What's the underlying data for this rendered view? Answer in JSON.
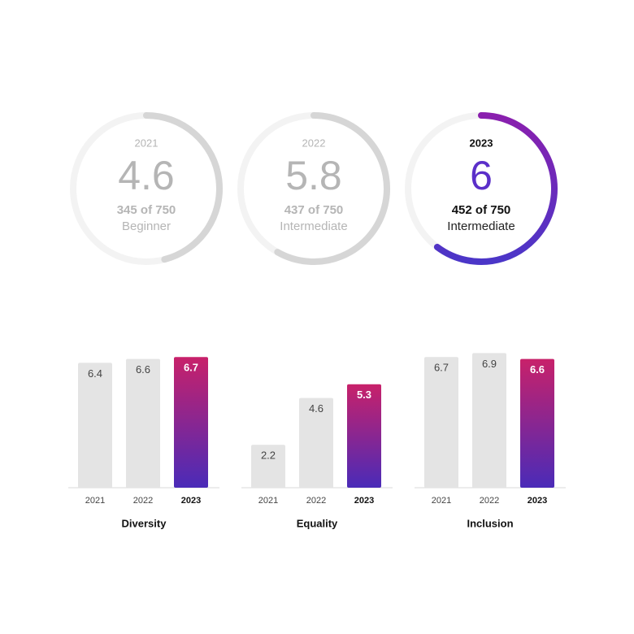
{
  "chart_data": [
    {
      "type": "gauge",
      "title": "2021",
      "score": 4.6,
      "value": 345,
      "max": 750,
      "value_labels": "345 of 750",
      "level": "Beginner",
      "color": "#d6d6d6",
      "active": false
    },
    {
      "type": "gauge",
      "title": "2022",
      "score": 5.8,
      "value": 437,
      "max": 750,
      "value_labels": "437 of 750",
      "level": "Intermediate",
      "color": "#d6d6d6",
      "active": false
    },
    {
      "type": "gauge",
      "title": "2023",
      "score": 6,
      "value": 452,
      "max": 750,
      "value_labels": "452 of 750",
      "level": "Intermediate",
      "color": [
        "#4b36c8",
        "#8a1fae"
      ],
      "active": true
    },
    {
      "type": "bar",
      "title": "Diversity",
      "categories": [
        "2021",
        "2022",
        "2023"
      ],
      "values": [
        6.4,
        6.6,
        6.7
      ],
      "color": "#e4e4e4",
      "highlight_color": [
        "#c8216a",
        "#4a2bb8"
      ]
    },
    {
      "type": "bar",
      "title": "Equality",
      "categories": [
        "2021",
        "2022",
        "2023"
      ],
      "values": [
        2.2,
        4.6,
        5.3
      ],
      "color": "#e4e4e4",
      "highlight_color": [
        "#c8216a",
        "#4a2bb8"
      ]
    },
    {
      "type": "bar",
      "title": "Inclusion",
      "categories": [
        "2021",
        "2022",
        "2023"
      ],
      "values": [
        6.7,
        6.9,
        6.6
      ],
      "color": "#e4e4e4",
      "highlight_color": [
        "#c8216a",
        "#4a2bb8"
      ]
    }
  ]
}
